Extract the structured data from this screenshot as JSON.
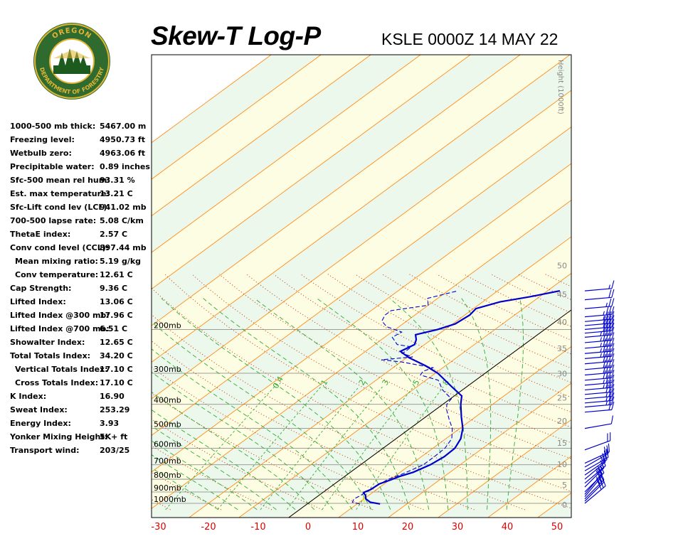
{
  "header": {
    "title": "Skew-T Log-P",
    "subtitle": "KSLE 0000Z 14 MAY 22"
  },
  "logo": {
    "top_text": "OREGON",
    "bottom_text": "DEPARTMENT OF FORESTRY",
    "colors": {
      "ring": "#2f6b2f",
      "inner": "#ffffff",
      "gold": "#e2b433",
      "tree": "#1d5a1d"
    }
  },
  "indices": [
    {
      "label": "1000-500 mb thick:",
      "value": "5467.00 m"
    },
    {
      "label": "Freezing level:",
      "value": "4950.73 ft"
    },
    {
      "label": "Wetbulb zero:",
      "value": "4963.06 ft"
    },
    {
      "label": "Precipitable water:",
      "value": "0.89 inches"
    },
    {
      "label": "Sfc-500 mean rel hum:",
      "value": "93.31 %"
    },
    {
      "label": "Est. max temperature:",
      "value": "13.21 C"
    },
    {
      "label": "Sfc-Lift cond lev (LCL):",
      "value": "941.02 mb"
    },
    {
      "label": "700-500 lapse rate:",
      "value": "5.08 C/km"
    },
    {
      "label": "ThetaE index:",
      "value": "2.57 C"
    },
    {
      "label": "Conv cond level (CCL):",
      "value": "897.44 mb"
    },
    {
      "label": "Mean mixing ratio:",
      "value": "5.19 g/kg",
      "indent": true
    },
    {
      "label": "Conv temperature:",
      "value": "12.61 C",
      "indent": true
    },
    {
      "label": "Cap Strength:",
      "value": "9.36 C"
    },
    {
      "label": "Lifted Index:",
      "value": "13.06 C"
    },
    {
      "label": "Lifted Index @300 mb:",
      "value": "17.96 C"
    },
    {
      "label": "Lifted Index @700 mb:",
      "value": "6.51 C"
    },
    {
      "label": "Showalter Index:",
      "value": "12.65 C"
    },
    {
      "label": "Total Totals Index:",
      "value": "34.20 C"
    },
    {
      "label": "Vertical Totals Index:",
      "value": "17.10 C",
      "indent": true
    },
    {
      "label": "Cross Totals Index:",
      "value": "17.10 C",
      "indent": true
    },
    {
      "label": "K Index:",
      "value": "16.90"
    },
    {
      "label": "Sweat Index:",
      "value": "253.29"
    },
    {
      "label": "Energy Index:",
      "value": "3.93"
    },
    {
      "label": "Yonker Mixing Height:",
      "value": "5K+ ft"
    },
    {
      "label": "Transport wind:",
      "value": "203/25"
    }
  ],
  "chart_data": {
    "type": "line",
    "skew_c_per_log_decade": 68,
    "x_ticks": [
      "-30",
      "-20",
      "-10",
      "0",
      "10",
      "20",
      "30",
      "40",
      "50"
    ],
    "x_tick_values": [
      -30,
      -20,
      -10,
      0,
      10,
      20,
      30,
      40,
      50
    ],
    "pressure_levels": [
      {
        "p": 1000,
        "label": "1000mb"
      },
      {
        "p": 900,
        "label": "900mb"
      },
      {
        "p": 800,
        "label": "800mb"
      },
      {
        "p": 700,
        "label": "700mb"
      },
      {
        "p": 600,
        "label": "600mb"
      },
      {
        "p": 500,
        "label": "500mb"
      },
      {
        "p": 400,
        "label": "400mb"
      },
      {
        "p": 300,
        "label": "300mb"
      },
      {
        "p": 200,
        "label": "200mb"
      }
    ],
    "height_axis": {
      "label": "Height (1000ft)",
      "ticks": [
        "0",
        "5",
        "10",
        "15",
        "20",
        "25",
        "30",
        "35",
        "40",
        "45",
        "50"
      ],
      "tick_values": [
        0,
        5,
        10,
        15,
        20,
        25,
        30,
        35,
        40,
        45,
        50
      ]
    },
    "mixing_ratio_labels": [
      "0.4",
      "1",
      "2",
      "3",
      "5",
      "8"
    ],
    "mixing_ratio_values": [
      0.4,
      1,
      2,
      3,
      5,
      8
    ],
    "temperature_profile": [
      [
        1005,
        14.6
      ],
      [
        990,
        12.2
      ],
      [
        960,
        10.4
      ],
      [
        930,
        9.4
      ],
      [
        905,
        8.2
      ],
      [
        880,
        8.8
      ],
      [
        835,
        9.0
      ],
      [
        805,
        10.2
      ],
      [
        780,
        11.0
      ],
      [
        750,
        12.6
      ],
      [
        700,
        14.0
      ],
      [
        650,
        14.6
      ],
      [
        600,
        14.4
      ],
      [
        550,
        13.0
      ],
      [
        500,
        10.6
      ],
      [
        450,
        7.2
      ],
      [
        400,
        3.6
      ],
      [
        370,
        1.5
      ],
      [
        340,
        -3.0
      ],
      [
        300,
        -9.5
      ],
      [
        280,
        -14.0
      ],
      [
        260,
        -19.5
      ],
      [
        245,
        -23.0
      ],
      [
        230,
        -22.0
      ],
      [
        220,
        -23.0
      ],
      [
        210,
        -24.5
      ],
      [
        200,
        -21.5
      ],
      [
        190,
        -19.5
      ],
      [
        175,
        -19.0
      ],
      [
        165,
        -19.5
      ],
      [
        155,
        -16.5
      ],
      [
        148,
        -12.0
      ],
      [
        140,
        -7.5
      ]
    ],
    "dewpoint_profile": [
      [
        1005,
        10.5
      ],
      [
        990,
        8.6
      ],
      [
        960,
        8.0
      ],
      [
        930,
        8.4
      ],
      [
        900,
        8.5
      ],
      [
        850,
        9.0
      ],
      [
        800,
        9.5
      ],
      [
        760,
        11.0
      ],
      [
        700,
        12.6
      ],
      [
        650,
        12.6
      ],
      [
        600,
        12.4
      ],
      [
        550,
        11.2
      ],
      [
        500,
        8.5
      ],
      [
        460,
        5.4
      ],
      [
        420,
        2.2
      ],
      [
        400,
        0.8
      ],
      [
        380,
        0.2
      ],
      [
        350,
        -4.0
      ],
      [
        320,
        -7.5
      ],
      [
        305,
        -12.5
      ],
      [
        295,
        -13.0
      ],
      [
        285,
        -12.0
      ],
      [
        270,
        -20.0
      ],
      [
        265,
        -24.5
      ],
      [
        258,
        -19.0
      ],
      [
        250,
        -22.0
      ],
      [
        235,
        -22.0
      ],
      [
        230,
        -25.5
      ],
      [
        215,
        -28.5
      ],
      [
        205,
        -28.0
      ],
      [
        195,
        -32.5
      ],
      [
        185,
        -35.0
      ],
      [
        175,
        -36.0
      ],
      [
        168,
        -36.0
      ],
      [
        160,
        -30.0
      ],
      [
        150,
        -32.0
      ],
      [
        140,
        -28.0
      ]
    ],
    "parcel_path": [
      [
        990,
        11.0
      ],
      [
        975,
        10.5
      ],
      [
        960,
        10.0
      ],
      [
        945,
        9.4
      ]
    ],
    "reference_isotherm": 0,
    "wind_barbs": [
      {
        "p": 1000,
        "dir": 230,
        "spd": 30
      },
      {
        "p": 980,
        "dir": 225,
        "spd": 30
      },
      {
        "p": 960,
        "dir": 225,
        "spd": 25
      },
      {
        "p": 940,
        "dir": 220,
        "spd": 25
      },
      {
        "p": 920,
        "dir": 220,
        "spd": 20
      },
      {
        "p": 900,
        "dir": 225,
        "spd": 20
      },
      {
        "p": 860,
        "dir": 225,
        "spd": 15
      },
      {
        "p": 830,
        "dir": 230,
        "spd": 15
      },
      {
        "p": 800,
        "dir": 230,
        "spd": 20
      },
      {
        "p": 770,
        "dir": 235,
        "spd": 20
      },
      {
        "p": 740,
        "dir": 240,
        "spd": 20
      },
      {
        "p": 715,
        "dir": 240,
        "spd": 20
      },
      {
        "p": 690,
        "dir": 245,
        "spd": 15
      },
      {
        "p": 610,
        "dir": 250,
        "spd": 20
      },
      {
        "p": 500,
        "dir": 260,
        "spd": 10
      },
      {
        "p": 430,
        "dir": 265,
        "spd": 20
      },
      {
        "p": 410,
        "dir": 265,
        "spd": 25
      },
      {
        "p": 395,
        "dir": 265,
        "spd": 25
      },
      {
        "p": 380,
        "dir": 265,
        "spd": 25
      },
      {
        "p": 365,
        "dir": 265,
        "spd": 30
      },
      {
        "p": 350,
        "dir": 265,
        "spd": 35
      },
      {
        "p": 335,
        "dir": 265,
        "spd": 35
      },
      {
        "p": 320,
        "dir": 265,
        "spd": 40
      },
      {
        "p": 305,
        "dir": 265,
        "spd": 40
      },
      {
        "p": 290,
        "dir": 265,
        "spd": 40
      },
      {
        "p": 275,
        "dir": 265,
        "spd": 40
      },
      {
        "p": 262,
        "dir": 265,
        "spd": 45
      },
      {
        "p": 250,
        "dir": 265,
        "spd": 45
      },
      {
        "p": 238,
        "dir": 265,
        "spd": 45
      },
      {
        "p": 226,
        "dir": 265,
        "spd": 45
      },
      {
        "p": 215,
        "dir": 265,
        "spd": 45
      },
      {
        "p": 207,
        "dir": 265,
        "spd": 40
      },
      {
        "p": 200,
        "dir": 265,
        "spd": 40
      },
      {
        "p": 193,
        "dir": 265,
        "spd": 40
      },
      {
        "p": 186,
        "dir": 265,
        "spd": 35
      },
      {
        "p": 178,
        "dir": 265,
        "spd": 35
      },
      {
        "p": 165,
        "dir": 265,
        "spd": 25
      },
      {
        "p": 152,
        "dir": 265,
        "spd": 20
      },
      {
        "p": 140,
        "dir": 265,
        "spd": 15
      }
    ],
    "colors": {
      "temperature": "#0000cc",
      "dewpoint": "#0000cc",
      "isobar": "#808080",
      "isotherm": "#ff8c1a",
      "dry_adiabat": "#cc3300",
      "moist_adiabat": "#33aa33",
      "mixing_ratio": "#33aa33",
      "band_cool": "#ebf8eb",
      "band_warm": "#fdfde3",
      "reference_isotherm": "#000000",
      "tick_labels": "#dd0000",
      "wind_barb": "#0000cc"
    }
  }
}
